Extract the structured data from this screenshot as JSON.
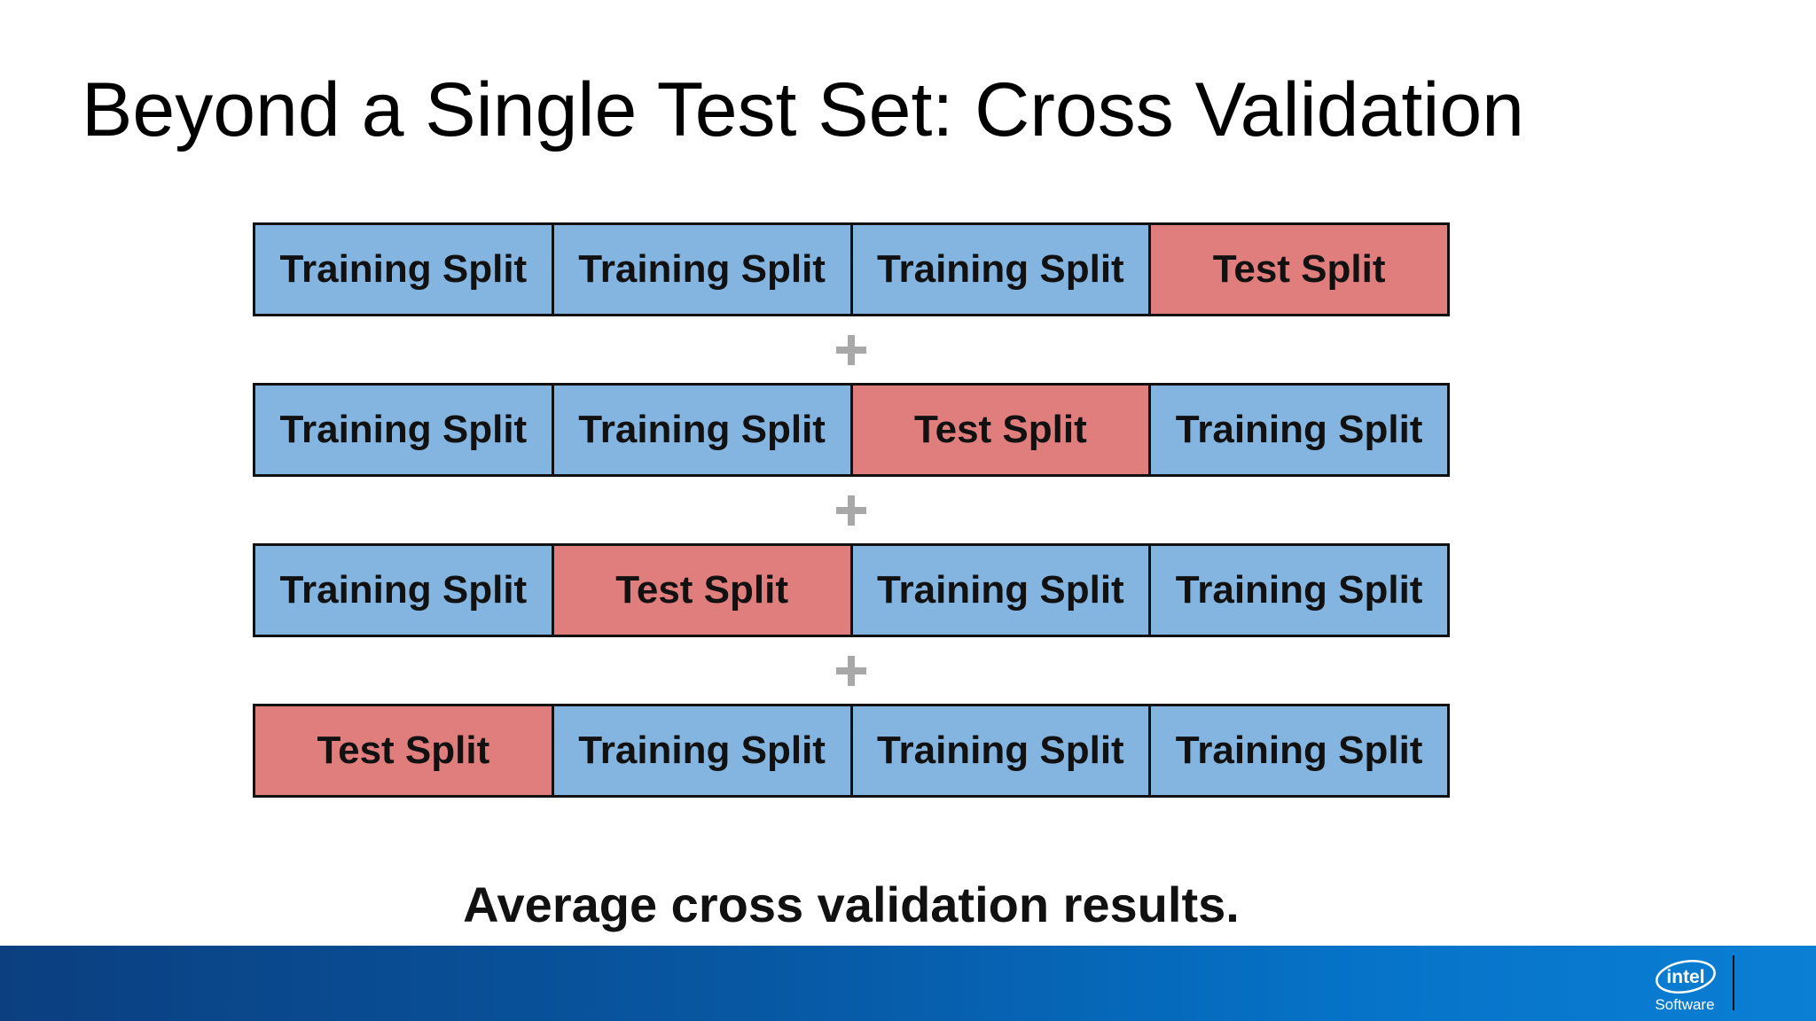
{
  "slide": {
    "title": "Beyond a Single Test Set: Cross Validation",
    "conclusion": "Average cross validation results."
  },
  "folds": [
    {
      "cells": [
        {
          "label": "Training Split",
          "kind": "training"
        },
        {
          "label": "Training Split",
          "kind": "training"
        },
        {
          "label": "Training Split",
          "kind": "training"
        },
        {
          "label": "Test Split",
          "kind": "test"
        }
      ]
    },
    {
      "cells": [
        {
          "label": "Training Split",
          "kind": "training"
        },
        {
          "label": "Training Split",
          "kind": "training"
        },
        {
          "label": "Test Split",
          "kind": "test"
        },
        {
          "label": "Training Split",
          "kind": "training"
        }
      ]
    },
    {
      "cells": [
        {
          "label": "Training Split",
          "kind": "training"
        },
        {
          "label": "Test Split",
          "kind": "test"
        },
        {
          "label": "Training Split",
          "kind": "training"
        },
        {
          "label": "Training Split",
          "kind": "training"
        }
      ]
    },
    {
      "cells": [
        {
          "label": "Test Split",
          "kind": "test"
        },
        {
          "label": "Training Split",
          "kind": "training"
        },
        {
          "label": "Training Split",
          "kind": "training"
        },
        {
          "label": "Training Split",
          "kind": "training"
        }
      ]
    }
  ],
  "separator": {
    "icon": "plus-icon"
  },
  "colors": {
    "training": "#84b5e0",
    "test": "#e07e7e",
    "separator": "#a8a8a8",
    "footer": "#0673c8"
  },
  "footer": {
    "logo_icon": "intel-logo-icon",
    "logo_text": "intel",
    "brand_subtitle": "Software"
  }
}
